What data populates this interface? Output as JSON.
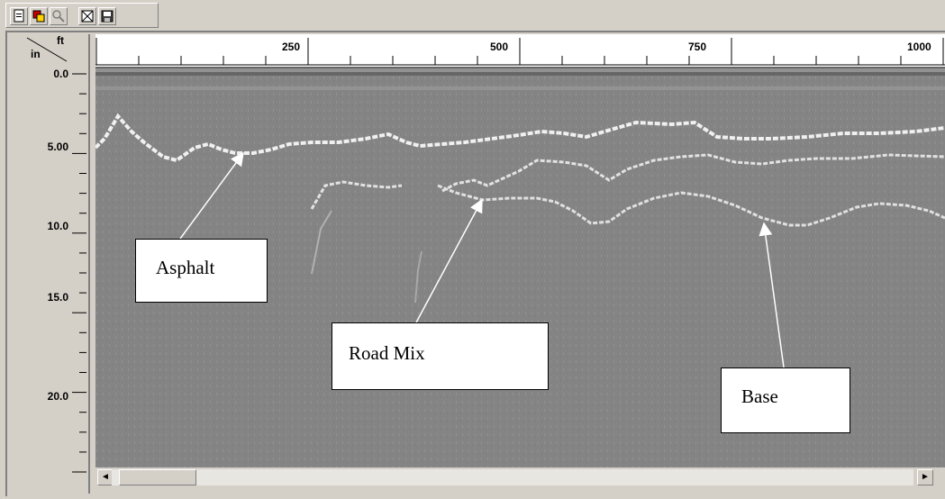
{
  "toolbar": {
    "buttons": [
      {
        "icon": "new-file-icon"
      },
      {
        "icon": "layers-icon"
      },
      {
        "icon": "zoom-icon"
      },
      {
        "icon": "grid-icon"
      },
      {
        "icon": "save-icon"
      }
    ]
  },
  "ruler": {
    "corner_top": "ft",
    "corner_bottom": "in",
    "x_ticks": [
      "250",
      "500",
      "750",
      "1000"
    ],
    "y_ticks": [
      "0.0",
      "5.00",
      "10.0",
      "15.0",
      "20.0"
    ]
  },
  "annotations": {
    "asphalt": "Asphalt",
    "road_mix": "Road Mix",
    "base": "Base"
  },
  "colors": {
    "background": "#848484",
    "reflection": "#ffffff",
    "window": "#d4d0c8"
  },
  "scrollbar": {
    "left_arrow": "◄",
    "right_arrow": "►"
  }
}
